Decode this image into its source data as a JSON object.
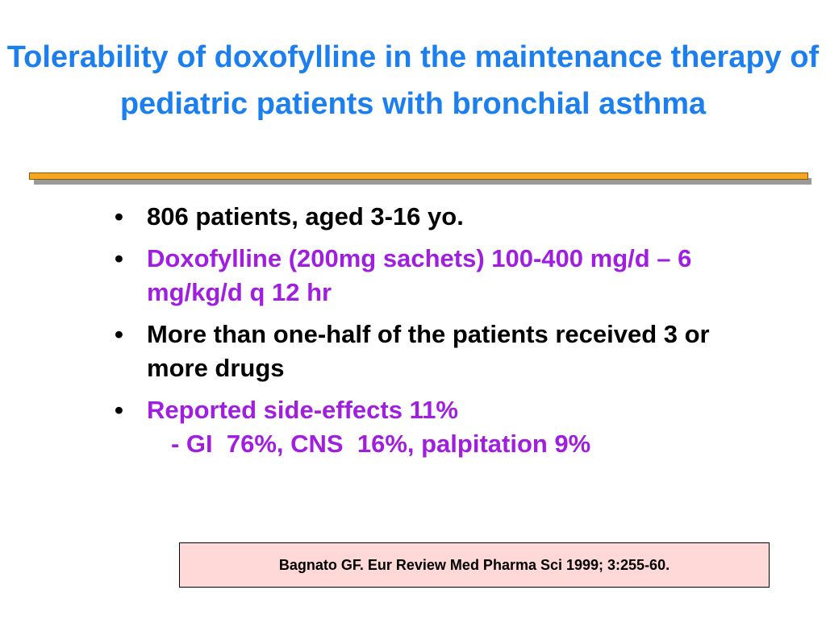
{
  "title": "Tolerability of doxofylline in the maintenance therapy of pediatric patients with bronchial asthma",
  "bullets": [
    "806 patients, aged 3-16 yo.",
    "Doxofylline (200mg sachets) 100-400 mg/d – 6 mg/kg/d q 12 hr",
    "More than one-half of the patients received 3 or more drugs",
    "Reported side-effects 11%"
  ],
  "sub_bullet": "- GI  76%, CNS  16%, palpitation 9%",
  "reference": "Bagnato GF. Eur Review Med Pharma Sci 1999; 3:255-60."
}
